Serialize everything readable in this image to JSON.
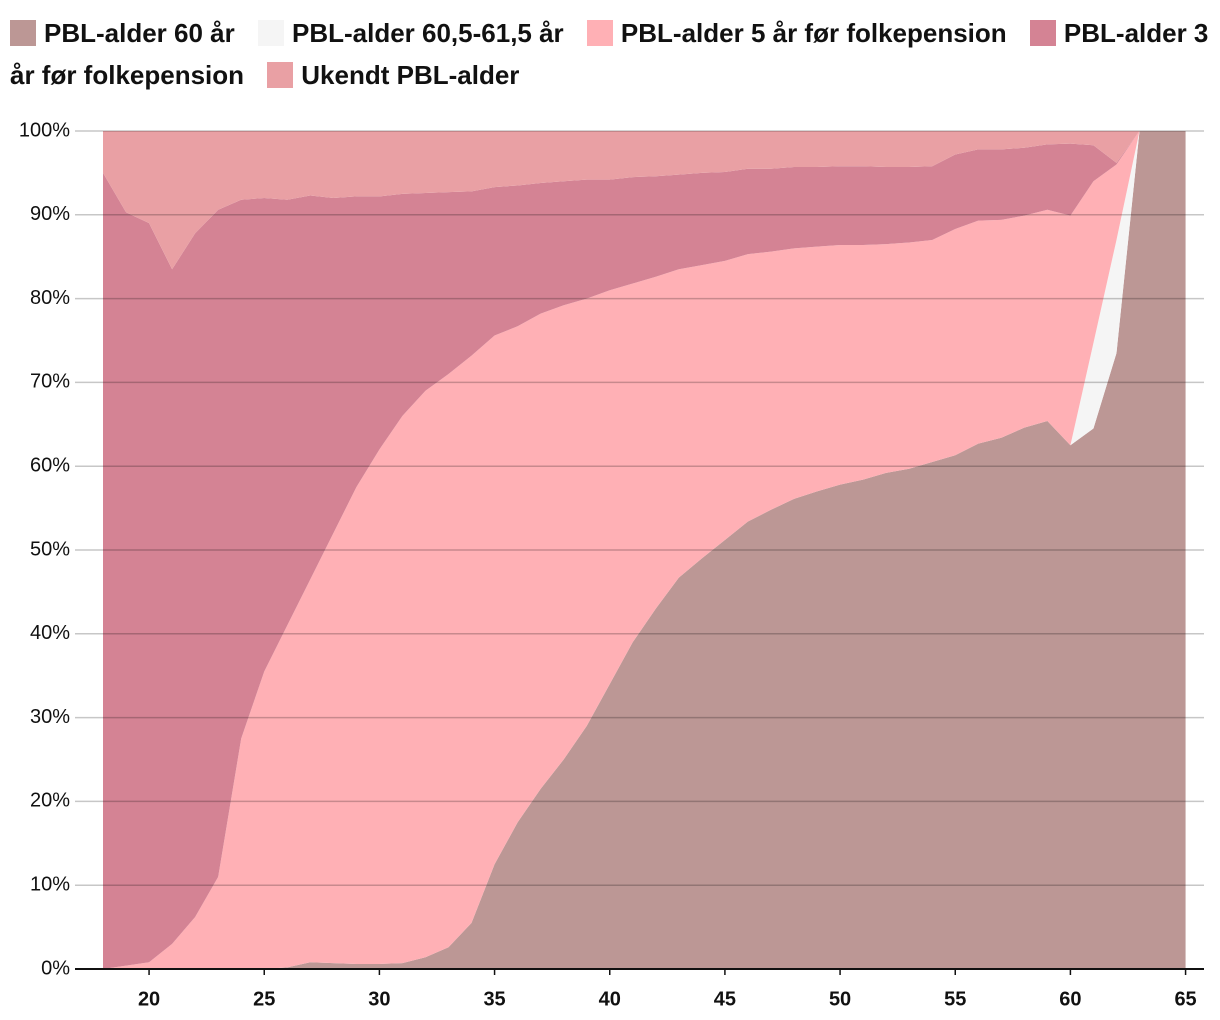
{
  "chart_data": {
    "type": "area",
    "stacked": true,
    "grid": true,
    "x": [
      18,
      19,
      20,
      21,
      22,
      23,
      24,
      25,
      26,
      27,
      28,
      29,
      30,
      31,
      32,
      33,
      34,
      35,
      36,
      37,
      38,
      39,
      40,
      41,
      42,
      43,
      44,
      45,
      46,
      47,
      48,
      49,
      50,
      51,
      52,
      53,
      54,
      55,
      56,
      57,
      58,
      59,
      60,
      61,
      62,
      63,
      64,
      65
    ],
    "xlim": [
      18,
      65.8
    ],
    "xticks": [
      20,
      25,
      30,
      35,
      40,
      45,
      50,
      55,
      60,
      65
    ],
    "ylim": [
      0,
      100
    ],
    "yticks": [
      {
        "value": 0,
        "label": "0%"
      },
      {
        "value": 10,
        "label": "10%"
      },
      {
        "value": 20,
        "label": "20%"
      },
      {
        "value": 30,
        "label": "30%"
      },
      {
        "value": 40,
        "label": "40%"
      },
      {
        "value": 50,
        "label": "50%"
      },
      {
        "value": 60,
        "label": "60%"
      },
      {
        "value": 70,
        "label": "70%"
      },
      {
        "value": 80,
        "label": "80%"
      },
      {
        "value": 90,
        "label": "90%"
      },
      {
        "value": 100,
        "label": "100%"
      }
    ],
    "series": [
      {
        "name": "PBL-alder 60 år",
        "color": "#bc9795",
        "values": [
          0,
          0,
          0,
          0,
          0,
          0,
          0,
          0,
          0.2,
          0.8,
          0.7,
          0.6,
          0.6,
          0.7,
          1.4,
          2.6,
          5.5,
          12.5,
          17.5,
          21.5,
          25,
          29,
          34,
          39,
          43,
          46.7,
          49,
          51.2,
          53.4,
          54.8,
          56.1,
          57,
          57.8,
          58.4,
          59.2,
          59.7,
          60.5,
          61.3,
          62.7,
          63.4,
          64.6,
          65.4,
          62.5,
          64.5,
          73.5,
          100,
          100,
          100
        ]
      },
      {
        "name": "PBL-alder 60,5-61,5 år",
        "color": "#f5f5f5",
        "values": [
          0,
          0,
          0,
          0,
          0,
          0,
          0,
          0,
          0,
          0,
          0,
          0,
          0,
          0,
          0,
          0,
          0,
          0,
          0,
          0,
          0,
          0,
          0,
          0,
          0,
          0,
          0,
          0,
          0,
          0,
          0,
          0,
          0,
          0,
          0,
          0,
          0,
          0,
          0,
          0,
          0,
          0,
          0,
          10.2,
          13.5,
          0,
          0,
          0
        ]
      },
      {
        "name": "PBL-alder 5 år før folkepension",
        "color": "#ffb0b5",
        "values": [
          0,
          0.4,
          0.8,
          3,
          6.2,
          11,
          27.5,
          35.5,
          40.8,
          45.7,
          51.3,
          56.9,
          61.4,
          65.3,
          67.6,
          68.4,
          67.7,
          63.1,
          59.2,
          56.7,
          54.2,
          51,
          47,
          42.8,
          39.6,
          36.8,
          35,
          33.3,
          31.9,
          30.8,
          29.9,
          29.2,
          28.6,
          28,
          27.3,
          27,
          26.5,
          27,
          26.6,
          26,
          25.3,
          25.2,
          27.4,
          19.3,
          9,
          0,
          0,
          0
        ]
      },
      {
        "name": "PBL-alder 3 år før folkepension",
        "color": "#d48394",
        "values": [
          95,
          89.9,
          88.2,
          80.5,
          81.6,
          79.6,
          64.3,
          56.5,
          50.8,
          45.8,
          40,
          34.7,
          30.2,
          26.5,
          23.6,
          21.7,
          19.6,
          17.7,
          16.8,
          15.6,
          14.8,
          14.2,
          13.2,
          12.7,
          12,
          11.3,
          11,
          10.6,
          10.2,
          9.9,
          9.7,
          9.5,
          9.4,
          9.4,
          9.2,
          9,
          8.8,
          8.9,
          8.5,
          8.4,
          8.1,
          7.8,
          8.6,
          4.3,
          0.2,
          0,
          0,
          0
        ]
      },
      {
        "name": "Ukendt PBL-alder",
        "color": "#e9a0a4",
        "values": [
          5,
          9.7,
          11,
          16.5,
          12.2,
          9.4,
          8.2,
          8,
          8.2,
          7.7,
          8,
          7.8,
          7.8,
          7.5,
          7.4,
          7.3,
          7.2,
          6.7,
          6.5,
          6.2,
          6,
          5.8,
          5.8,
          5.5,
          5.4,
          5.2,
          5,
          4.9,
          4.5,
          4.5,
          4.3,
          4.3,
          4.2,
          4.2,
          4.3,
          4.3,
          4.2,
          2.8,
          2.2,
          2.2,
          2,
          1.6,
          1.5,
          1.7,
          3.8,
          0,
          0,
          0
        ]
      }
    ]
  }
}
